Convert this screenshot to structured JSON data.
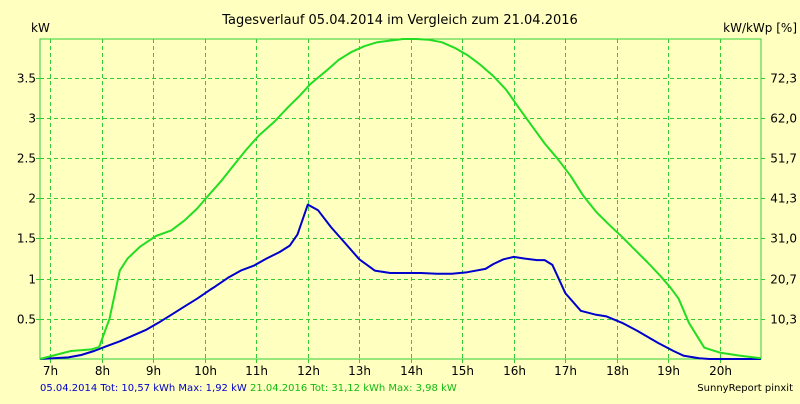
{
  "chart_data": {
    "type": "line",
    "title": "Tagesverlauf 05.04.2014 im Vergleich zum 21.04.2016",
    "ylabel_left": "kW",
    "ylabel_right": "kW/kWp [%]",
    "xlim": [
      6.8,
      20.8
    ],
    "ylim": [
      0,
      3.98
    ],
    "x_ticks": [
      7,
      8,
      9,
      10,
      11,
      12,
      13,
      14,
      15,
      16,
      17,
      18,
      19,
      20
    ],
    "x_tick_labels": [
      "7h",
      "8h",
      "9h",
      "10h",
      "11h",
      "12h",
      "13h",
      "14h",
      "15h",
      "16h",
      "17h",
      "18h",
      "19h",
      "20h"
    ],
    "y_ticks_left": [
      0.5,
      1,
      1.5,
      2,
      2.5,
      3,
      3.5
    ],
    "y_tick_labels_left": [
      "0.5",
      "1",
      "1.5",
      "2",
      "2.5",
      "3",
      "3.5"
    ],
    "y_tick_labels_right": [
      "10,3",
      "20,7",
      "31,0",
      "41,3",
      "51,7",
      "62,0",
      "72,3"
    ],
    "grid": true,
    "colors": {
      "background": "#ffffc0",
      "grid": "#33cc33",
      "series_2014": "#0000cc",
      "series_2016": "#22dd22"
    },
    "series": [
      {
        "name": "05.04.2014",
        "color": "#0000cc",
        "x": [
          6.8,
          7.35,
          7.6,
          7.85,
          8.1,
          8.35,
          8.6,
          8.85,
          9.1,
          9.35,
          9.6,
          9.85,
          10.1,
          10.2,
          10.45,
          10.7,
          10.95,
          11.2,
          11.45,
          11.65,
          11.8,
          12.0,
          12.2,
          12.45,
          12.7,
          13.0,
          13.3,
          13.6,
          13.9,
          14.2,
          14.5,
          14.8,
          15.1,
          15.45,
          15.6,
          15.8,
          16.0,
          16.2,
          16.45,
          16.6,
          16.75,
          17.0,
          17.3,
          17.6,
          17.8,
          18.1,
          18.4,
          18.8,
          19.1,
          19.3,
          19.6,
          19.8,
          20.2,
          20.8
        ],
        "y": [
          0,
          0.02,
          0.05,
          0.1,
          0.16,
          0.22,
          0.29,
          0.36,
          0.45,
          0.55,
          0.65,
          0.75,
          0.86,
          0.9,
          1.01,
          1.1,
          1.16,
          1.25,
          1.33,
          1.41,
          1.55,
          1.92,
          1.85,
          1.64,
          1.46,
          1.24,
          1.1,
          1.07,
          1.07,
          1.07,
          1.06,
          1.06,
          1.08,
          1.12,
          1.18,
          1.24,
          1.27,
          1.25,
          1.23,
          1.23,
          1.17,
          0.82,
          0.6,
          0.55,
          0.53,
          0.45,
          0.35,
          0.2,
          0.1,
          0.04,
          0.01,
          0,
          0,
          0
        ]
      },
      {
        "name": "21.04.2016",
        "color": "#22dd22",
        "x": [
          6.8,
          7.4,
          7.8,
          7.95,
          8.15,
          8.35,
          8.5,
          8.75,
          9.05,
          9.35,
          9.6,
          9.85,
          10.05,
          10.3,
          10.55,
          10.8,
          11.05,
          11.35,
          11.6,
          11.85,
          12.05,
          12.35,
          12.6,
          12.85,
          13.1,
          13.35,
          13.6,
          13.85,
          14.1,
          14.35,
          14.6,
          14.85,
          15.1,
          15.35,
          15.6,
          15.85,
          16.1,
          16.35,
          16.6,
          16.85,
          17.1,
          17.35,
          17.6,
          17.85,
          18.1,
          18.35,
          18.6,
          18.85,
          19.05,
          19.2,
          19.4,
          19.7,
          20.0,
          20.4,
          20.8
        ],
        "y": [
          0,
          0.1,
          0.12,
          0.15,
          0.5,
          1.1,
          1.25,
          1.4,
          1.53,
          1.6,
          1.72,
          1.87,
          2.02,
          2.2,
          2.4,
          2.6,
          2.78,
          2.95,
          3.12,
          3.28,
          3.42,
          3.58,
          3.72,
          3.82,
          3.89,
          3.94,
          3.96,
          3.98,
          3.98,
          3.97,
          3.94,
          3.87,
          3.78,
          3.66,
          3.52,
          3.35,
          3.12,
          2.9,
          2.68,
          2.49,
          2.28,
          2.03,
          1.83,
          1.67,
          1.52,
          1.36,
          1.2,
          1.03,
          0.88,
          0.75,
          0.45,
          0.14,
          0.08,
          0.04,
          0.01
        ]
      }
    ]
  },
  "footer": {
    "series_2014": "05.04.2014 Tot: 10,57 kWh Max: 1,92 kW",
    "series_2016": "21.04.2016 Tot: 31,12 kWh Max: 3,98 kW",
    "credit": "SunnyReport pinxit"
  }
}
